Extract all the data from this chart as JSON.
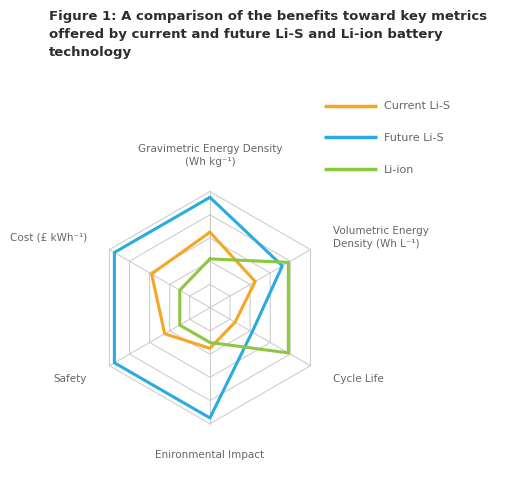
{
  "title": "Figure 1: A comparison of the benefits toward key metrics\noffered by current and future Li-S and Li-ion battery\ntechnology",
  "categories": [
    "Gravimetric Energy Density\n(Wh kg⁻¹)",
    "Volumetric Energy\nDensity (Wh L⁻¹)",
    "Cycle Life",
    "Enironmental Impact",
    "Safety",
    "Cost (£ kWh⁻¹)"
  ],
  "series": [
    {
      "name": "Current Li-S",
      "color": "#F5A623",
      "values": [
        0.65,
        0.45,
        0.25,
        0.35,
        0.45,
        0.58
      ]
    },
    {
      "name": "Future Li-S",
      "color": "#29ABE2",
      "values": [
        0.95,
        0.72,
        0.42,
        0.95,
        0.95,
        0.95
      ]
    },
    {
      "name": "Li-ion",
      "color": "#8DC63F",
      "values": [
        0.42,
        0.78,
        0.78,
        0.3,
        0.3,
        0.3
      ]
    }
  ],
  "n_rings": 5,
  "background_color": "#FFFFFF",
  "grid_color": "#C8C8C8",
  "title_color": "#2d2d2d",
  "label_color": "#666666",
  "title_fontsize": 9.5,
  "label_fontsize": 7.5,
  "legend_fontsize": 8.0
}
